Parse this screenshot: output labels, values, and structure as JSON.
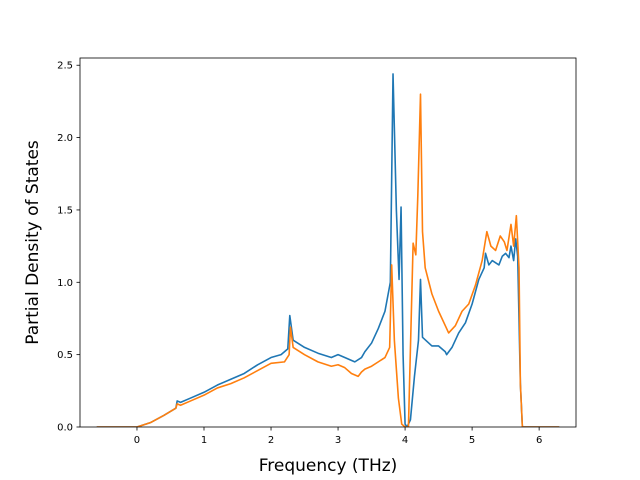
{
  "chart_data": {
    "type": "line",
    "xlabel": "Frequency (THz)",
    "ylabel": "Partial Density of States",
    "xlim": [
      -0.85,
      6.55
    ],
    "ylim": [
      0.0,
      2.55
    ],
    "xticks": [
      0,
      1,
      2,
      3,
      4,
      5,
      6
    ],
    "yticks": [
      0.0,
      0.5,
      1.0,
      1.5,
      2.0,
      2.5
    ],
    "xtick_labels": [
      "0",
      "1",
      "2",
      "3",
      "4",
      "5",
      "6"
    ],
    "ytick_labels": [
      "0.0",
      "0.5",
      "1.0",
      "1.5",
      "2.0",
      "2.5"
    ],
    "grid": false,
    "series": [
      {
        "color": "#1f77b4",
        "points": [
          [
            -0.6,
            0.0
          ],
          [
            0.0,
            0.0
          ],
          [
            0.2,
            0.03
          ],
          [
            0.4,
            0.08
          ],
          [
            0.58,
            0.13
          ],
          [
            0.6,
            0.18
          ],
          [
            0.65,
            0.17
          ],
          [
            0.8,
            0.2
          ],
          [
            1.0,
            0.24
          ],
          [
            1.2,
            0.29
          ],
          [
            1.4,
            0.33
          ],
          [
            1.6,
            0.37
          ],
          [
            1.8,
            0.43
          ],
          [
            2.0,
            0.48
          ],
          [
            2.15,
            0.5
          ],
          [
            2.25,
            0.54
          ],
          [
            2.28,
            0.77
          ],
          [
            2.33,
            0.6
          ],
          [
            2.5,
            0.55
          ],
          [
            2.7,
            0.51
          ],
          [
            2.9,
            0.48
          ],
          [
            3.0,
            0.5
          ],
          [
            3.1,
            0.48
          ],
          [
            3.25,
            0.45
          ],
          [
            3.35,
            0.48
          ],
          [
            3.4,
            0.52
          ],
          [
            3.5,
            0.58
          ],
          [
            3.6,
            0.68
          ],
          [
            3.7,
            0.8
          ],
          [
            3.78,
            1.0
          ],
          [
            3.82,
            2.44
          ],
          [
            3.87,
            1.5
          ],
          [
            3.91,
            1.02
          ],
          [
            3.94,
            1.52
          ],
          [
            3.97,
            0.5
          ],
          [
            4.0,
            0.02
          ],
          [
            4.03,
            0.0
          ],
          [
            4.08,
            0.05
          ],
          [
            4.14,
            0.35
          ],
          [
            4.2,
            0.6
          ],
          [
            4.23,
            1.02
          ],
          [
            4.26,
            0.62
          ],
          [
            4.4,
            0.56
          ],
          [
            4.5,
            0.56
          ],
          [
            4.6,
            0.52
          ],
          [
            4.62,
            0.5
          ],
          [
            4.7,
            0.55
          ],
          [
            4.8,
            0.65
          ],
          [
            4.9,
            0.72
          ],
          [
            5.0,
            0.85
          ],
          [
            5.1,
            1.02
          ],
          [
            5.18,
            1.1
          ],
          [
            5.2,
            1.2
          ],
          [
            5.25,
            1.12
          ],
          [
            5.3,
            1.15
          ],
          [
            5.4,
            1.12
          ],
          [
            5.45,
            1.18
          ],
          [
            5.5,
            1.2
          ],
          [
            5.55,
            1.17
          ],
          [
            5.58,
            1.25
          ],
          [
            5.62,
            1.15
          ],
          [
            5.65,
            1.3
          ],
          [
            5.68,
            1.18
          ],
          [
            5.72,
            0.3
          ],
          [
            5.75,
            0.0
          ],
          [
            6.3,
            0.0
          ]
        ]
      },
      {
        "color": "#ff7f0e",
        "points": [
          [
            -0.6,
            0.0
          ],
          [
            0.0,
            0.0
          ],
          [
            0.2,
            0.03
          ],
          [
            0.4,
            0.08
          ],
          [
            0.58,
            0.13
          ],
          [
            0.6,
            0.16
          ],
          [
            0.65,
            0.15
          ],
          [
            0.8,
            0.18
          ],
          [
            1.0,
            0.22
          ],
          [
            1.2,
            0.27
          ],
          [
            1.4,
            0.3
          ],
          [
            1.6,
            0.34
          ],
          [
            1.8,
            0.39
          ],
          [
            2.0,
            0.44
          ],
          [
            2.2,
            0.45
          ],
          [
            2.27,
            0.5
          ],
          [
            2.29,
            0.69
          ],
          [
            2.33,
            0.55
          ],
          [
            2.5,
            0.5
          ],
          [
            2.7,
            0.45
          ],
          [
            2.9,
            0.42
          ],
          [
            3.0,
            0.43
          ],
          [
            3.1,
            0.41
          ],
          [
            3.2,
            0.37
          ],
          [
            3.3,
            0.35
          ],
          [
            3.35,
            0.38
          ],
          [
            3.4,
            0.4
          ],
          [
            3.5,
            0.42
          ],
          [
            3.6,
            0.45
          ],
          [
            3.7,
            0.48
          ],
          [
            3.77,
            0.55
          ],
          [
            3.8,
            1.12
          ],
          [
            3.84,
            0.6
          ],
          [
            3.9,
            0.2
          ],
          [
            3.95,
            0.02
          ],
          [
            4.0,
            0.0
          ],
          [
            4.05,
            0.0
          ],
          [
            4.12,
            1.27
          ],
          [
            4.16,
            1.19
          ],
          [
            4.19,
            1.6
          ],
          [
            4.23,
            2.3
          ],
          [
            4.26,
            1.35
          ],
          [
            4.3,
            1.1
          ],
          [
            4.4,
            0.92
          ],
          [
            4.5,
            0.8
          ],
          [
            4.6,
            0.7
          ],
          [
            4.65,
            0.65
          ],
          [
            4.75,
            0.7
          ],
          [
            4.85,
            0.8
          ],
          [
            4.95,
            0.85
          ],
          [
            5.05,
            0.98
          ],
          [
            5.15,
            1.15
          ],
          [
            5.22,
            1.35
          ],
          [
            5.28,
            1.25
          ],
          [
            5.35,
            1.22
          ],
          [
            5.42,
            1.32
          ],
          [
            5.48,
            1.28
          ],
          [
            5.52,
            1.22
          ],
          [
            5.58,
            1.4
          ],
          [
            5.62,
            1.25
          ],
          [
            5.66,
            1.46
          ],
          [
            5.7,
            1.1
          ],
          [
            5.72,
            0.3
          ],
          [
            5.75,
            0.0
          ],
          [
            6.3,
            0.0
          ]
        ]
      }
    ]
  }
}
